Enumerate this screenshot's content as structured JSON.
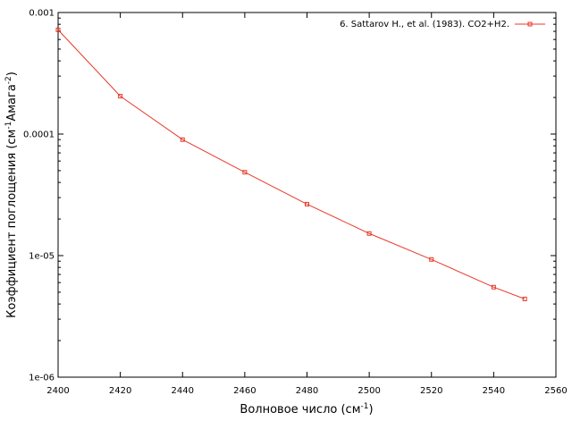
{
  "chart_data": {
    "type": "line",
    "title": "",
    "xlabel": "Волновое число (см",
    "xlabel_sup": "-1",
    "xlabel_end": ")",
    "ylabel_parts": [
      "Коэффициент поглощения (см",
      "-1",
      "Амага",
      "-2",
      ")"
    ],
    "xlim": [
      2400,
      2560
    ],
    "ylim": [
      1e-06,
      0.001
    ],
    "yscale": "log",
    "x_ticks": [
      2400,
      2420,
      2440,
      2460,
      2480,
      2500,
      2520,
      2540,
      2560
    ],
    "x_tick_labels": [
      "2400",
      "2420",
      "2440",
      "2460",
      "2480",
      "2500",
      "2520",
      "2540",
      "2560"
    ],
    "y_ticks": [
      1e-06,
      1e-05,
      0.0001,
      0.001
    ],
    "y_tick_labels": [
      "1e-06",
      "1e-05",
      "0.0001",
      "0.001"
    ],
    "grid": false,
    "legend_position": "top-right",
    "series": [
      {
        "name": "6. Sattarov H., et al. (1983). CO2+H2.",
        "color": "#e8392a",
        "marker": "square",
        "x": [
          2400,
          2420,
          2440,
          2460,
          2480,
          2500,
          2520,
          2540,
          2550
        ],
        "y": [
          0.00072,
          0.000205,
          9e-05,
          4.85e-05,
          2.65e-05,
          1.52e-05,
          9.3e-06,
          5.5e-06,
          4.4e-06
        ]
      }
    ]
  }
}
